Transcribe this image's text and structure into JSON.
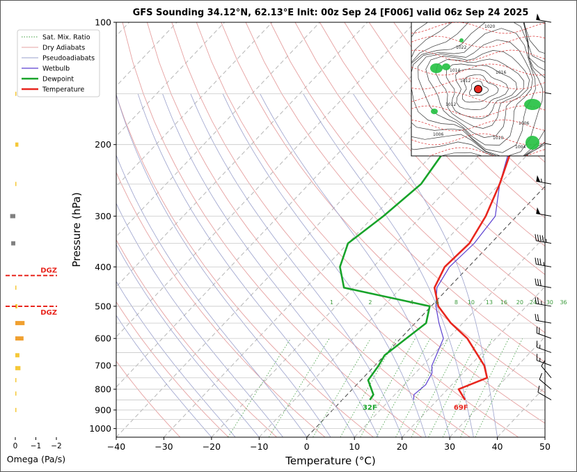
{
  "chart_data": {
    "type": "line",
    "title": "GFS Sounding 34.12°N, 62.13°E Init: 00z Sep 24 [F006] valid 06z Sep 24 2025",
    "xlabel": "Temperature (°C)",
    "ylabel": "Pressure (hPa)",
    "xlim": [
      -40,
      50
    ],
    "ylim": [
      1050,
      100
    ],
    "y_scale": "log",
    "x_ticks": [
      "−40",
      "−30",
      "−20",
      "−10",
      "0",
      "10",
      "20",
      "30",
      "40",
      "50"
    ],
    "y_ticks": [
      "100",
      "200",
      "300",
      "400",
      "500",
      "600",
      "700",
      "800",
      "900",
      "1000"
    ],
    "legend": {
      "placement": "top-left",
      "entries": [
        "Sat. Mix. Ratio",
        "Dry Adiabats",
        "Pseudoadiabats",
        "Wetbulb",
        "Dewpoint",
        "Temperature"
      ]
    },
    "series": [
      {
        "name": "Temperature",
        "color": "#e8261e",
        "points": [
          [
            25.8,
            850
          ],
          [
            22.3,
            800
          ],
          [
            26.0,
            750
          ],
          [
            23.0,
            700
          ],
          [
            14.0,
            600
          ],
          [
            7.5,
            550
          ],
          [
            1.5,
            500
          ],
          [
            -3.0,
            450
          ],
          [
            -5.0,
            400
          ],
          [
            -4.5,
            350
          ],
          [
            -6.5,
            300
          ],
          [
            -10.0,
            250
          ],
          [
            -15.0,
            200
          ],
          [
            -19.5,
            150
          ],
          [
            -19.0,
            125
          ],
          [
            -18.0,
            100
          ]
        ]
      },
      {
        "name": "Dewpoint",
        "color": "#18a32a",
        "points": [
          [
            5.8,
            850
          ],
          [
            5.5,
            825
          ],
          [
            1.5,
            760
          ],
          [
            0.8,
            700
          ],
          [
            0,
            660
          ],
          [
            2.3,
            550
          ],
          [
            -0.3,
            500
          ],
          [
            -22.0,
            450
          ],
          [
            -27.0,
            400
          ],
          [
            -30.0,
            350
          ],
          [
            -28.0,
            300
          ],
          [
            -26.5,
            250
          ],
          [
            -28.5,
            200
          ],
          [
            -24.0,
            150
          ],
          [
            -20.0,
            100
          ]
        ]
      },
      {
        "name": "Wetbulb",
        "color": "#5a3fd0",
        "points": [
          [
            15.0,
            850
          ],
          [
            14.0,
            825
          ],
          [
            14.5,
            780
          ],
          [
            13.5,
            730
          ],
          [
            12.0,
            700
          ],
          [
            9.0,
            600
          ],
          [
            5.0,
            550
          ],
          [
            1.0,
            500
          ],
          [
            -2.5,
            450
          ],
          [
            -4.0,
            400
          ],
          [
            -3.5,
            350
          ],
          [
            -4.5,
            300
          ],
          [
            -10.0,
            250
          ],
          [
            -15.5,
            200
          ],
          [
            -19.5,
            150
          ]
        ]
      }
    ],
    "mixing_ratio_labels": [
      "1",
      "2",
      "4",
      "6",
      "8",
      "10",
      "13",
      "16",
      "20",
      "24",
      "30",
      "36"
    ],
    "surface_labels": {
      "dewpoint": "32F",
      "temperature": "69F"
    },
    "omega_panel": {
      "xlabel": "Omega (Pa/s)",
      "x_ticks": [
        "0",
        "−1",
        "−2"
      ],
      "dgz_label": "DGZ",
      "dgz_levels_hPa": [
        420,
        500
      ],
      "bars": [
        {
          "p": 900,
          "value": -0.05,
          "color": "#f5c838"
        },
        {
          "p": 820,
          "value": -0.05,
          "color": "#f5c838"
        },
        {
          "p": 760,
          "value": -0.05,
          "color": "#f5c838"
        },
        {
          "p": 710,
          "value": -0.25,
          "color": "#f5c838"
        },
        {
          "p": 660,
          "value": -0.2,
          "color": "#f5c838"
        },
        {
          "p": 600,
          "value": -0.4,
          "color": "#f0a030"
        },
        {
          "p": 550,
          "value": -0.45,
          "color": "#f0a030"
        },
        {
          "p": 500,
          "value": -0.1,
          "color": "#f5c838"
        },
        {
          "p": 450,
          "value": -0.05,
          "color": "#f5c838"
        },
        {
          "p": 350,
          "value": 0.2,
          "color": "#808080"
        },
        {
          "p": 300,
          "value": 0.25,
          "color": "#808080"
        },
        {
          "p": 250,
          "value": -0.05,
          "color": "#f5c838"
        },
        {
          "p": 200,
          "value": -0.15,
          "color": "#f5c838"
        },
        {
          "p": 150,
          "value": -0.05,
          "color": "#f5c838"
        }
      ]
    },
    "wind_barbs": [
      {
        "p": 850,
        "speed_kt": 10,
        "dir_deg": 300
      },
      {
        "p": 800,
        "speed_kt": 10,
        "dir_deg": 310
      },
      {
        "p": 750,
        "speed_kt": 10,
        "dir_deg": 320
      },
      {
        "p": 700,
        "speed_kt": 15,
        "dir_deg": 290
      },
      {
        "p": 650,
        "speed_kt": 15,
        "dir_deg": 290
      },
      {
        "p": 600,
        "speed_kt": 20,
        "dir_deg": 290
      },
      {
        "p": 550,
        "speed_kt": 20,
        "dir_deg": 280
      },
      {
        "p": 500,
        "speed_kt": 25,
        "dir_deg": 280
      },
      {
        "p": 450,
        "speed_kt": 30,
        "dir_deg": 280
      },
      {
        "p": 400,
        "speed_kt": 35,
        "dir_deg": 280
      },
      {
        "p": 350,
        "speed_kt": 45,
        "dir_deg": 280
      },
      {
        "p": 300,
        "speed_kt": 50,
        "dir_deg": 280
      },
      {
        "p": 250,
        "speed_kt": 55,
        "dir_deg": 280
      },
      {
        "p": 200,
        "speed_kt": 55,
        "dir_deg": 280
      },
      {
        "p": 150,
        "speed_kt": 55,
        "dir_deg": 280
      },
      {
        "p": 100,
        "speed_kt": 50,
        "dir_deg": 280
      }
    ],
    "inset_map": {
      "placement": "top-right",
      "pressure_labels": [
        "1022",
        "1014",
        "1012",
        "1006",
        "1016",
        "1020",
        "1012",
        "1006",
        "1010",
        "1004"
      ]
    }
  }
}
